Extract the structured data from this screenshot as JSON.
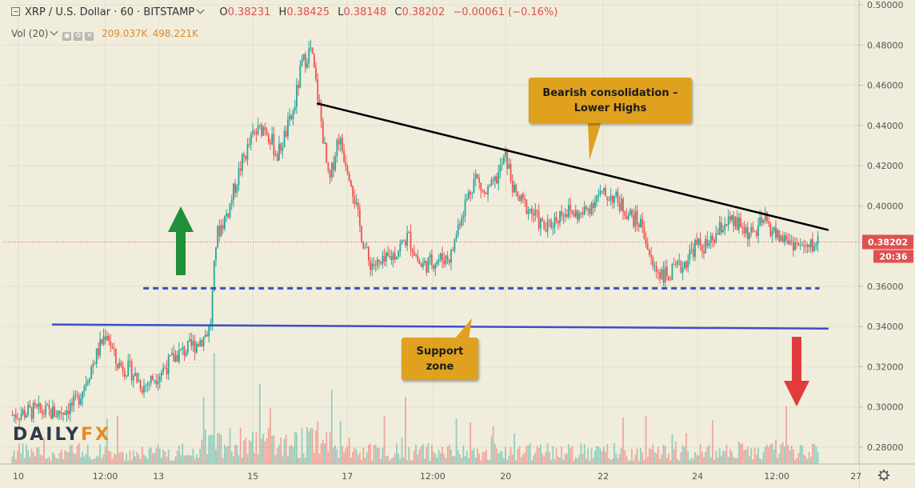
{
  "header": {
    "symbol": "XRP / U.S. Dollar · 60 · BITSTAMP",
    "o_label": "O",
    "o_value": "0.38231",
    "h_label": "H",
    "h_value": "0.38425",
    "l_label": "L",
    "l_value": "0.38148",
    "c_label": "C",
    "c_value": "0.38202",
    "change": "−0.00061 (−0.16%)"
  },
  "volume_legend": {
    "label": "Vol (20)",
    "value1": "209.037K",
    "value2": "498.221K"
  },
  "price_badge": {
    "price": "0.38202",
    "countdown": "20:36",
    "color": "#e05050"
  },
  "annotations": {
    "consolidation": "Bearish consolidation – Lower Highs",
    "support": "Support zone"
  },
  "logo": {
    "part1": "DAILY",
    "part2": "FX"
  },
  "colors": {
    "up": "#26a69a",
    "down": "#ef5350",
    "resistance_line": "#000000",
    "support_line": "#3a4fc8",
    "callout": "#dfa11e",
    "arrow_up": "#1f8f3a",
    "arrow_down": "#e23b3b"
  },
  "icons": {
    "settings": "gear-icon",
    "collapse": "collapse-icon"
  },
  "chart_data": {
    "type": "candlestick",
    "title": "XRP / U.S. Dollar · 60 · BITSTAMP",
    "ylim": [
      0.27,
      0.5
    ],
    "y_ticks": [
      "0.50000",
      "0.48000",
      "0.46000",
      "0.44000",
      "0.42000",
      "0.40000",
      "0.36000",
      "0.34000",
      "0.32000",
      "0.30000",
      "0.28000"
    ],
    "x_ticks": [
      "10",
      "12:00",
      "13",
      "15",
      "17",
      "12:00",
      "20",
      "22",
      "24",
      "12:00",
      "27"
    ],
    "x_tick_positions": [
      0.5,
      3.35,
      5.1,
      8.2,
      11.3,
      14.1,
      16.5,
      19.7,
      22.8,
      25.4,
      28.0
    ],
    "xlim": [
      0,
      28.1
    ],
    "close_path": [
      [
        0.3,
        0.296
      ],
      [
        1.0,
        0.298
      ],
      [
        1.8,
        0.297
      ],
      [
        2.4,
        0.302
      ],
      [
        2.9,
        0.32
      ],
      [
        3.4,
        0.338
      ],
      [
        3.7,
        0.322
      ],
      [
        4.2,
        0.318
      ],
      [
        4.6,
        0.31
      ],
      [
        5.2,
        0.318
      ],
      [
        5.7,
        0.326
      ],
      [
        6.2,
        0.33
      ],
      [
        6.6,
        0.335
      ],
      [
        6.8,
        0.34
      ],
      [
        7.0,
        0.385
      ],
      [
        7.4,
        0.398
      ],
      [
        7.8,
        0.42
      ],
      [
        8.2,
        0.435
      ],
      [
        8.6,
        0.44
      ],
      [
        9.0,
        0.425
      ],
      [
        9.5,
        0.445
      ],
      [
        9.8,
        0.47
      ],
      [
        10.1,
        0.478
      ],
      [
        10.4,
        0.447
      ],
      [
        10.7,
        0.41
      ],
      [
        11.0,
        0.435
      ],
      [
        11.4,
        0.415
      ],
      [
        11.7,
        0.39
      ],
      [
        12.0,
        0.372
      ],
      [
        12.4,
        0.37
      ],
      [
        12.9,
        0.377
      ],
      [
        13.3,
        0.385
      ],
      [
        13.7,
        0.37
      ],
      [
        14.2,
        0.373
      ],
      [
        14.7,
        0.375
      ],
      [
        15.0,
        0.394
      ],
      [
        15.5,
        0.415
      ],
      [
        15.8,
        0.405
      ],
      [
        16.1,
        0.41
      ],
      [
        16.5,
        0.425
      ],
      [
        16.8,
        0.405
      ],
      [
        17.3,
        0.398
      ],
      [
        17.8,
        0.388
      ],
      [
        18.4,
        0.398
      ],
      [
        19.0,
        0.395
      ],
      [
        19.5,
        0.405
      ],
      [
        20.0,
        0.405
      ],
      [
        20.6,
        0.395
      ],
      [
        21.0,
        0.39
      ],
      [
        21.3,
        0.37
      ],
      [
        21.8,
        0.365
      ],
      [
        22.3,
        0.37
      ],
      [
        22.7,
        0.38
      ],
      [
        23.2,
        0.38
      ],
      [
        23.7,
        0.392
      ],
      [
        24.2,
        0.39
      ],
      [
        24.6,
        0.385
      ],
      [
        25.0,
        0.393
      ],
      [
        25.4,
        0.385
      ],
      [
        25.9,
        0.382
      ],
      [
        26.4,
        0.378
      ],
      [
        26.7,
        0.382
      ]
    ],
    "resistance_line": {
      "from": [
        10.3,
        0.451
      ],
      "to": [
        27.1,
        0.388
      ]
    },
    "support_line_dashed": {
      "from": [
        4.6,
        0.359
      ],
      "to": [
        26.8,
        0.359
      ]
    },
    "support_line_solid": {
      "from": [
        1.6,
        0.341
      ],
      "to": [
        27.1,
        0.339
      ]
    },
    "current_price": 0.38202
  }
}
